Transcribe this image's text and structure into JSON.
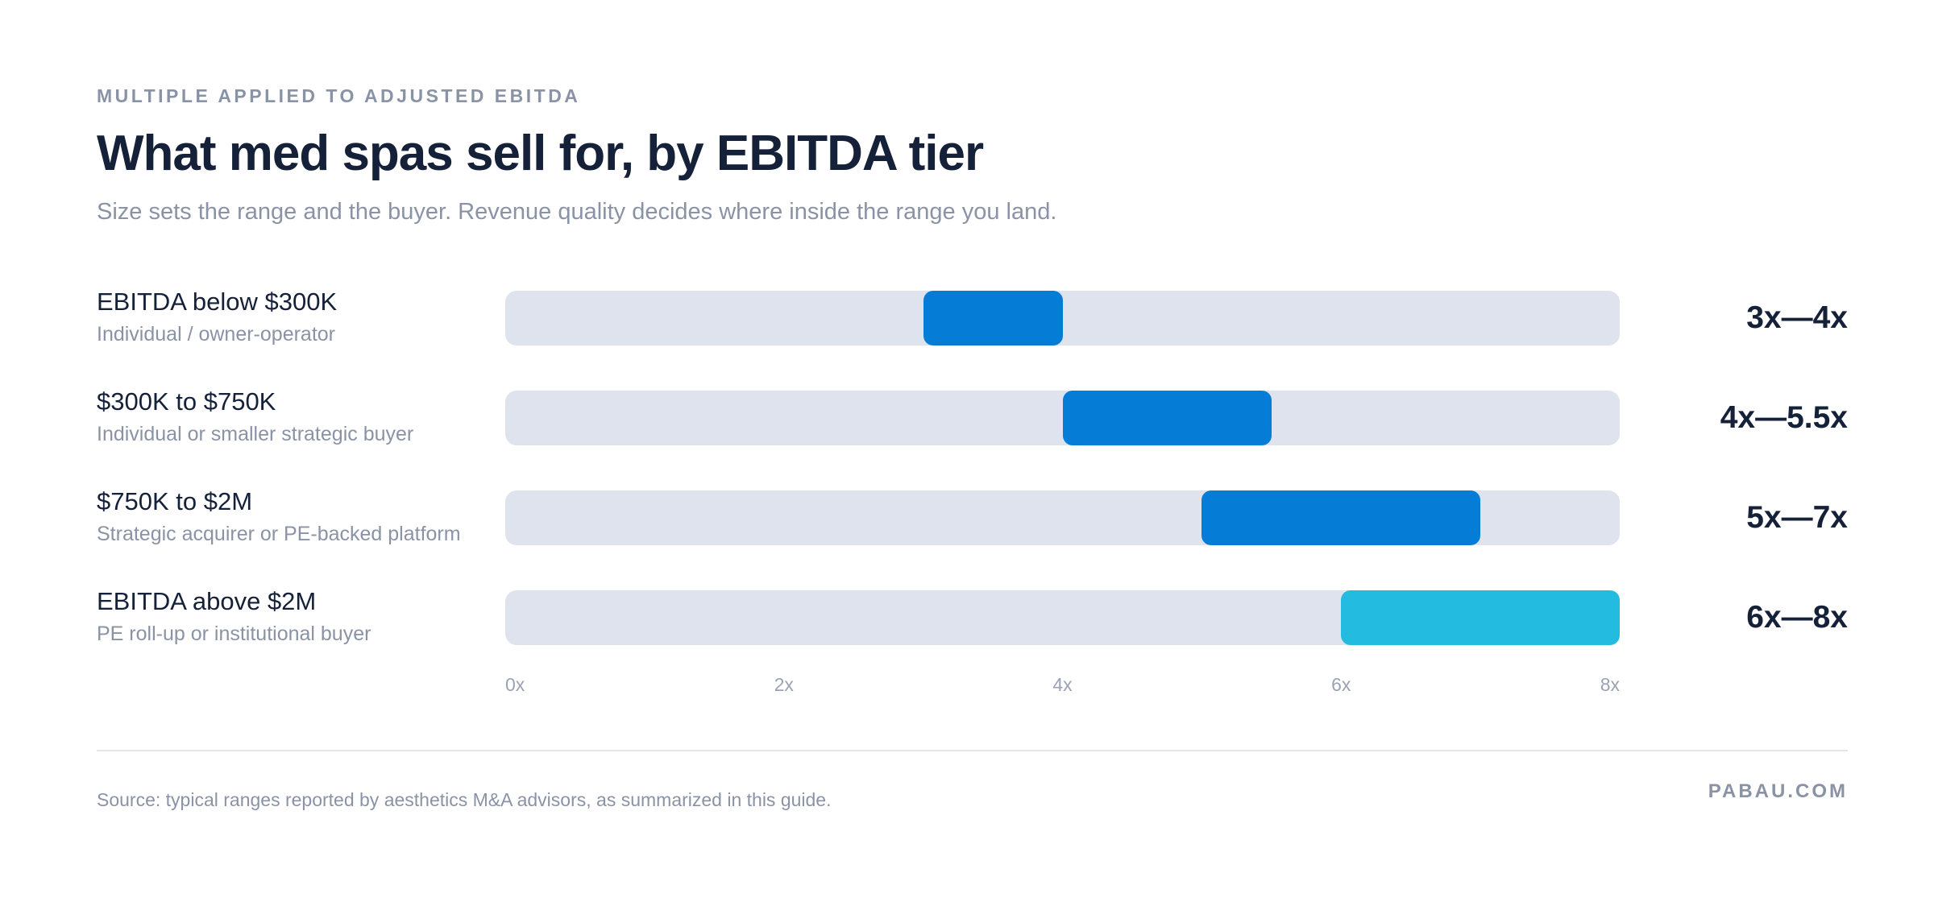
{
  "header": {
    "eyebrow": "MULTIPLE APPLIED TO ADJUSTED EBITDA",
    "title": "What med spas sell for, by EBITDA tier",
    "subtitle": "Size sets the range and the buyer. Revenue quality decides where inside the range you land."
  },
  "chart_data": {
    "type": "bar",
    "orientation": "horizontal-range",
    "title": "What med spas sell for, by EBITDA tier",
    "xlim": [
      0,
      8
    ],
    "x_ticks": [
      "0x",
      "2x",
      "4x",
      "6x",
      "8x"
    ],
    "categories": [
      "EBITDA below $300K",
      "$300K to $750K",
      "$750K to $2M",
      "EBITDA above $2M"
    ],
    "rows": [
      {
        "tier": "EBITDA below $300K",
        "buyer": "Individual / owner-operator",
        "low": 3,
        "high": 4,
        "label": "3x—4x",
        "color": "#057dd6"
      },
      {
        "tier": "$300K to $750K",
        "buyer": "Individual or smaller strategic buyer",
        "low": 4,
        "high": 5.5,
        "label": "4x—5.5x",
        "color": "#057dd6"
      },
      {
        "tier": "$750K to $2M",
        "buyer": "Strategic acquirer or PE-backed platform",
        "low": 5,
        "high": 7,
        "label": "5x—7x",
        "color": "#057dd6"
      },
      {
        "tier": "EBITDA above $2M",
        "buyer": "PE roll-up or institutional buyer",
        "low": 6,
        "high": 8,
        "label": "6x—8x",
        "color": "#24bbe0"
      }
    ],
    "track_color": "#dfe3ed",
    "grid": false,
    "legend": "none"
  },
  "footer": {
    "source": "Source: typical ranges reported by aesthetics M&A advisors, as summarized in this guide.",
    "brand": "PABAU.COM"
  }
}
